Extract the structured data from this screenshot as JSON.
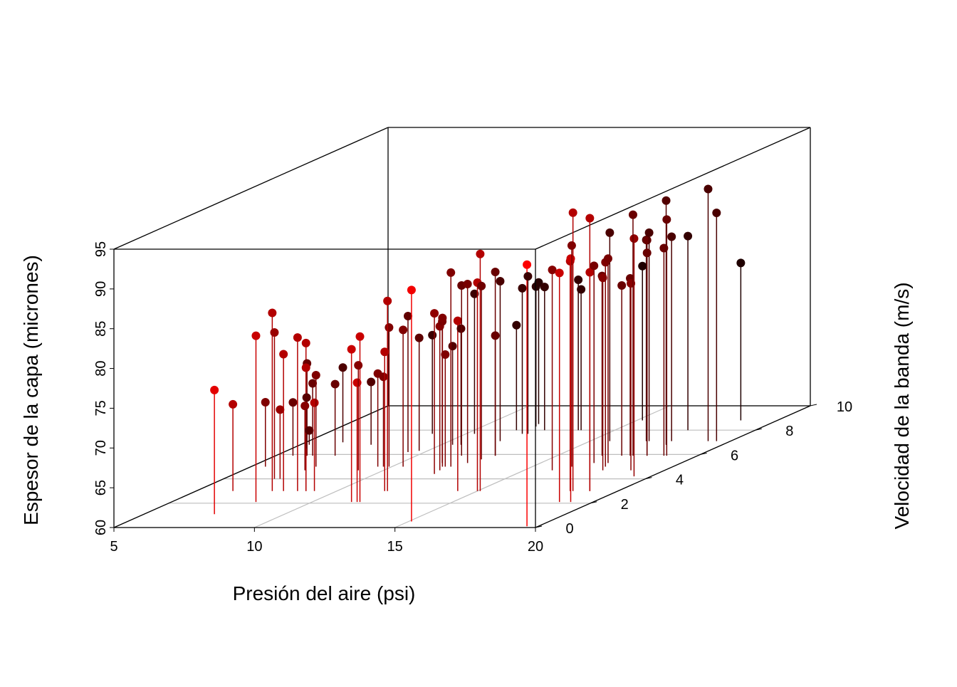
{
  "chart_data": {
    "type": "scatter3d",
    "xlabel": "Presión del aire (psi)",
    "ylabel": "Velocidad de la banda (m/s)",
    "zlabel": "Espesor de la capa (micrones)",
    "xlim": [
      5,
      20
    ],
    "xticks": [
      5,
      10,
      15,
      20
    ],
    "ylim": [
      0,
      10
    ],
    "yticks": [
      0,
      2,
      4,
      6,
      8,
      10
    ],
    "zlim": [
      60,
      95
    ],
    "zticks": [
      60,
      65,
      70,
      75,
      80,
      85,
      90,
      95
    ],
    "grid": true,
    "highlight_3d": true,
    "drop_lines": true,
    "x": [
      7.5,
      6.3,
      8.0,
      5.5,
      7.7,
      6.8,
      7.0,
      8.1,
      5.6,
      8.6,
      8.9,
      6.1,
      8.9,
      5.5,
      7.2,
      5.3,
      6.3,
      9.2,
      7.3,
      7.1,
      6.3,
      11.4,
      11.6,
      11.7,
      9.1,
      9.5,
      9.7,
      7.5,
      9.9,
      11.7,
      11.8,
      10.4,
      9.4,
      15.1,
      9.7,
      8.8,
      12.1,
      12.0,
      11.5,
      11.8,
      11.9,
      10.4,
      12.1,
      14.3,
      10.7,
      11.6,
      12.4,
      10.3,
      15.0,
      15.1,
      12.6,
      12.8,
      12.8,
      11.8,
      11.5,
      12.0,
      19.6,
      12.2,
      11.9,
      11.8,
      12.5,
      16.0,
      18.8,
      18.3,
      19.2,
      18.4,
      16.4,
      13.7,
      13.8,
      19.0,
      19.0,
      16.9,
      16.6,
      17.8,
      17.6,
      15.7,
      17.4,
      17.3,
      17.6,
      18.8,
      19.4,
      17.7,
      17.0,
      15.2,
      18.2,
      17.1,
      18.2,
      18.8,
      18.0,
      18.9,
      17.9,
      17.6,
      19.2,
      19.5,
      18.7
    ],
    "y": [
      1.1,
      3.0,
      2.1,
      5.0,
      3.0,
      4.0,
      4.0,
      3.0,
      5.9,
      3.0,
      3.0,
      5.9,
      3.0,
      6.5,
      4.7,
      6.8,
      5.9,
      3.0,
      5.0,
      5.9,
      7.0,
      2.1,
      2.1,
      2.1,
      4.7,
      5.0,
      5.0,
      6.8,
      5.0,
      3.0,
      3.0,
      5.0,
      6.2,
      0.5,
      6.3,
      7.7,
      4.4,
      4.7,
      5.3,
      5.0,
      5.0,
      6.8,
      5.0,
      3.0,
      6.8,
      5.9,
      5.3,
      7.7,
      3.0,
      3.0,
      5.6,
      5.9,
      5.9,
      7.1,
      8.0,
      7.7,
      0.1,
      7.7,
      8.3,
      8.5,
      8.0,
      4.7,
      2.1,
      3.0,
      2.1,
      3.0,
      5.0,
      8.0,
      8.0,
      3.0,
      3.0,
      5.3,
      5.9,
      4.7,
      5.0,
      7.1,
      5.3,
      5.9,
      5.9,
      4.7,
      4.2,
      5.9,
      7.1,
      8.8,
      5.9,
      7.1,
      5.9,
      5.9,
      6.8,
      5.9,
      7.1,
      8.0,
      7.1,
      7.1,
      8.8
    ],
    "z": [
      75.6,
      70.9,
      80.9,
      68.1,
      82.4,
      78.4,
      68.7,
      77.2,
      66.7,
      79.3,
      78.6,
      71.6,
      75.5,
      66.4,
      68.1,
      61.8,
      69.1,
      71.1,
      71.5,
      69.0,
      69.4,
      79.2,
      75.0,
      80.8,
      73.2,
      71.7,
      71.3,
      67.9,
      77.5,
      77.5,
      83.9,
      77.2,
      77.1,
      89.1,
      74.2,
      72.4,
      80.2,
      78.1,
      77.8,
      78.7,
      74.1,
      72.4,
      84.4,
      81.4,
      74.6,
      81.4,
      82.5,
      77.6,
      86.2,
      89.8,
      81.8,
      83.1,
      75.1,
      80.1,
      73.2,
      78.3,
      92.9,
      79.8,
      77.6,
      77.8,
      78.0,
      85.2,
      88.8,
      88.9,
      90.6,
      95,
      87.8,
      78.9,
      77.7,
      87.5,
      94.3,
      84.8,
      82.6,
      84.2,
      85.7,
      86.2,
      85.7,
      81.4,
      82.3,
      83.5,
      89.9,
      90.3,
      85.3,
      79.4,
      87.1,
      86.2,
      85.5,
      86.1,
      90.7,
      89.7,
      85.7,
      84.4,
      91.7,
      88.7,
      79.8
    ]
  }
}
